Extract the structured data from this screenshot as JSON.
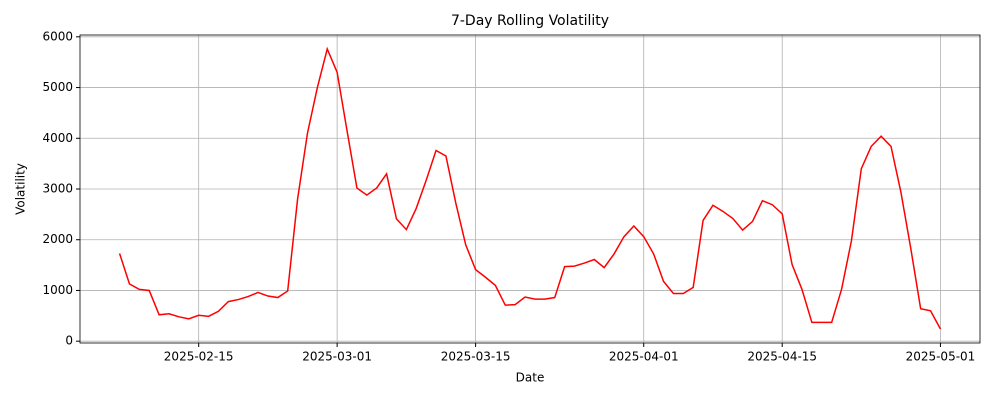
{
  "chart_data": {
    "type": "line",
    "title": "7-Day Rolling Volatility",
    "x_label": "Date",
    "y_label": "Volatility",
    "x": [
      "2025-02-07",
      "2025-02-08",
      "2025-02-09",
      "2025-02-10",
      "2025-02-11",
      "2025-02-12",
      "2025-02-13",
      "2025-02-14",
      "2025-02-15",
      "2025-02-16",
      "2025-02-17",
      "2025-02-18",
      "2025-02-19",
      "2025-02-20",
      "2025-02-21",
      "2025-02-22",
      "2025-02-23",
      "2025-02-24",
      "2025-02-25",
      "2025-02-26",
      "2025-02-27",
      "2025-02-28",
      "2025-03-01",
      "2025-03-02",
      "2025-03-03",
      "2025-03-04",
      "2025-03-05",
      "2025-03-06",
      "2025-03-07",
      "2025-03-08",
      "2025-03-09",
      "2025-03-10",
      "2025-03-11",
      "2025-03-12",
      "2025-03-13",
      "2025-03-14",
      "2025-03-15",
      "2025-03-16",
      "2025-03-17",
      "2025-03-18",
      "2025-03-19",
      "2025-03-20",
      "2025-03-21",
      "2025-03-22",
      "2025-03-23",
      "2025-03-24",
      "2025-03-25",
      "2025-03-26",
      "2025-03-27",
      "2025-03-28",
      "2025-03-29",
      "2025-03-30",
      "2025-03-31",
      "2025-04-01",
      "2025-04-02",
      "2025-04-03",
      "2025-04-04",
      "2025-04-05",
      "2025-04-06",
      "2025-04-07",
      "2025-04-08",
      "2025-04-09",
      "2025-04-10",
      "2025-04-11",
      "2025-04-12",
      "2025-04-13",
      "2025-04-14",
      "2025-04-15",
      "2025-04-16",
      "2025-04-17",
      "2025-04-18",
      "2025-04-19",
      "2025-04-20",
      "2025-04-21",
      "2025-04-22",
      "2025-04-23",
      "2025-04-24",
      "2025-04-25",
      "2025-04-26",
      "2025-04-27",
      "2025-04-28",
      "2025-04-29",
      "2025-04-30",
      "2025-05-01"
    ],
    "series": [
      {
        "name": "Volatility",
        "color": "#ff0000",
        "values": [
          1730,
          1130,
          1020,
          1000,
          520,
          540,
          480,
          440,
          510,
          490,
          590,
          780,
          820,
          880,
          960,
          890,
          860,
          990,
          2800,
          4100,
          5000,
          5760,
          5300,
          4150,
          3020,
          2880,
          3020,
          3300,
          2410,
          2200,
          2620,
          3170,
          3760,
          3650,
          2720,
          1900,
          1410,
          1260,
          1100,
          710,
          720,
          870,
          830,
          830,
          860,
          1470,
          1480,
          1540,
          1610,
          1450,
          1720,
          2060,
          2270,
          2060,
          1720,
          1180,
          940,
          940,
          1060,
          2380,
          2680,
          2560,
          2420,
          2190,
          2360,
          2770,
          2690,
          2510,
          1510,
          1020,
          370,
          370,
          370,
          1020,
          1980,
          3400,
          3840,
          4040,
          3840,
          2940,
          1830,
          640,
          600,
          240
        ]
      }
    ],
    "xlim": [
      "2025-02-03",
      "2025-05-05"
    ],
    "xticks": [
      "2025-02-15",
      "2025-03-01",
      "2025-03-15",
      "2025-04-01",
      "2025-04-15",
      "2025-05-01"
    ],
    "ylim": [
      -36,
      6036
    ],
    "yticks": [
      0,
      1000,
      2000,
      3000,
      4000,
      5000,
      6000
    ],
    "grid": true
  }
}
